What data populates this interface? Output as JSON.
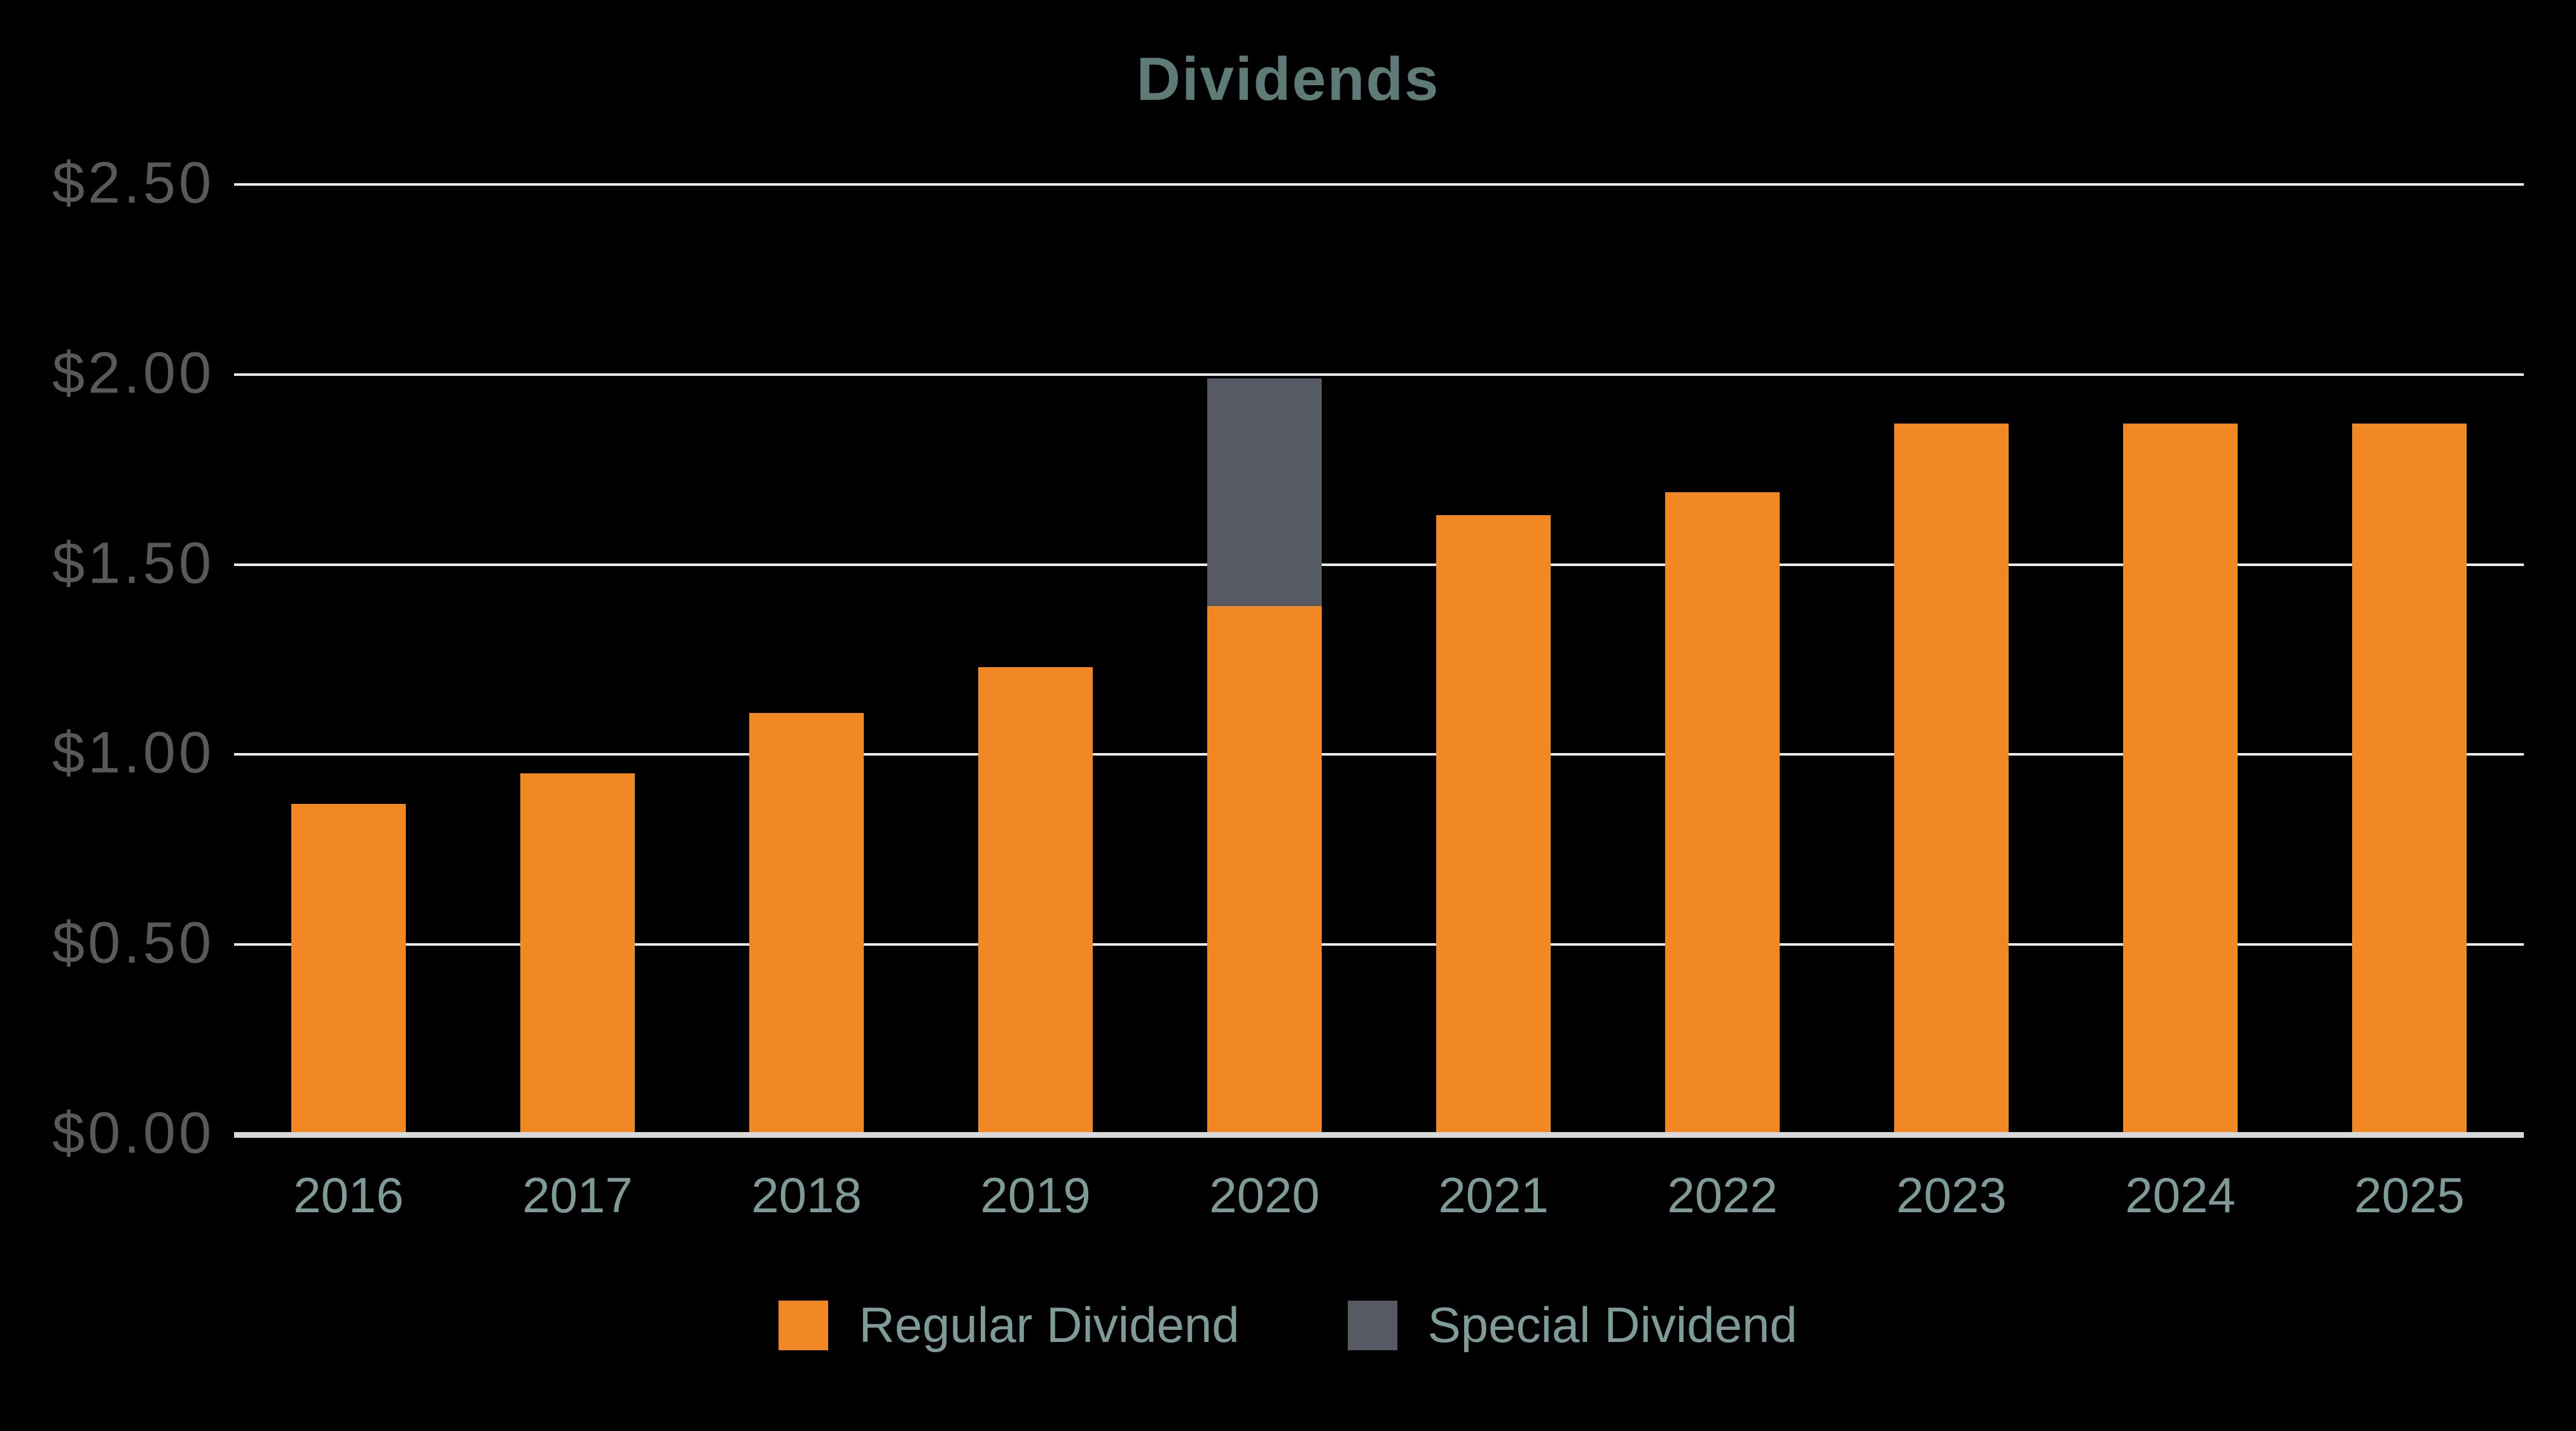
{
  "title": "Dividends",
  "colors": {
    "background": "#000000",
    "regular_dividend": "#F28824",
    "special_dividend": "#565B63",
    "title_text": "#5E7B78",
    "axis_value_text": "#58595B",
    "category_text": "#7E9B99",
    "gridline": "#EAEAEA",
    "axis_line": "#D9D9D9"
  },
  "legend": {
    "items": [
      {
        "label": "Regular Dividend",
        "color_key": "regular_dividend"
      },
      {
        "label": "Special Dividend",
        "color_key": "special_dividend"
      }
    ]
  },
  "chart_data": {
    "type": "bar",
    "stacked": true,
    "title": "Dividends",
    "categories": [
      "2016",
      "2017",
      "2018",
      "2019",
      "2020",
      "2021",
      "2022",
      "2023",
      "2024",
      "2025"
    ],
    "series": [
      {
        "name": "Regular Dividend",
        "color_key": "regular_dividend",
        "values": [
          0.87,
          0.95,
          1.11,
          1.23,
          1.39,
          1.63,
          1.69,
          1.87,
          1.87,
          1.87
        ]
      },
      {
        "name": "Special Dividend",
        "color_key": "special_dividend",
        "values": [
          0,
          0,
          0,
          0,
          0.6,
          0,
          0,
          0,
          0,
          0
        ]
      }
    ],
    "y_ticks": [
      {
        "value": 0.0,
        "label": "$0.00"
      },
      {
        "value": 0.5,
        "label": "$0.50"
      },
      {
        "value": 1.0,
        "label": "$1.00"
      },
      {
        "value": 1.5,
        "label": "$1.50"
      },
      {
        "value": 2.0,
        "label": "$2.00"
      },
      {
        "value": 2.5,
        "label": "$2.50"
      }
    ],
    "ylim": [
      0,
      2.5
    ],
    "xlabel": "",
    "ylabel": "",
    "grid": true,
    "legend_position": "bottom"
  }
}
